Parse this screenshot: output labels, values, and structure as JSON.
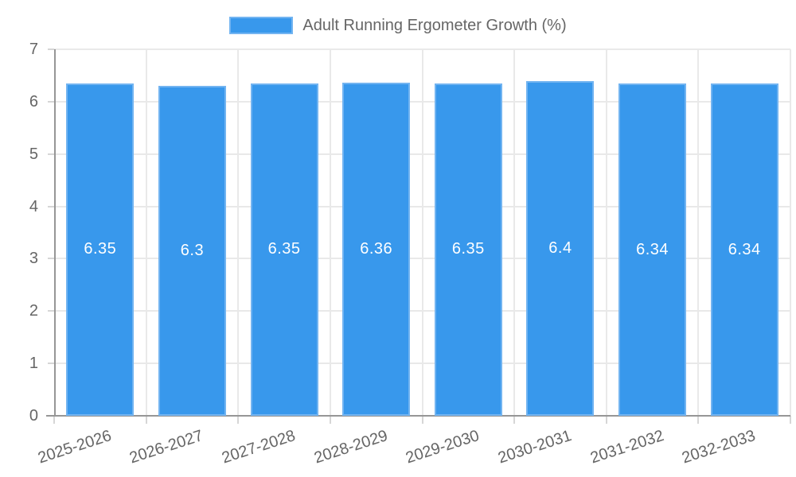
{
  "legend": {
    "label": "Adult Running Ergometer Growth (%)"
  },
  "colors": {
    "bar": "#3898ec",
    "bar_border": "#72b4f1",
    "text": "#666666",
    "axis_line": "#969696",
    "grid_line": "#e9e9e9",
    "tick": "#d6d6d6",
    "value_label": "#ffffff",
    "background": "#ffffff"
  },
  "chart_data": {
    "type": "bar",
    "title": "Adult Running Ergometer Growth (%)",
    "categories": [
      "2025-2026",
      "2026-2027",
      "2027-2028",
      "2028-2029",
      "2029-2030",
      "2030-2031",
      "2031-2032",
      "2032-2033"
    ],
    "values": [
      6.35,
      6.3,
      6.35,
      6.36,
      6.35,
      6.4,
      6.34,
      6.34
    ],
    "bar_labels": [
      "6.35",
      "6.3",
      "6.35",
      "6.36",
      "6.35",
      "6.4",
      "6.34",
      "6.34"
    ],
    "series_name": "Adult Running Ergometer Growth (%)",
    "xlabel": "",
    "ylabel": "",
    "ylim": [
      0,
      7
    ],
    "yticks": [
      0,
      1,
      2,
      3,
      4,
      5,
      6,
      7
    ],
    "grid": true,
    "legend_position": "top"
  }
}
